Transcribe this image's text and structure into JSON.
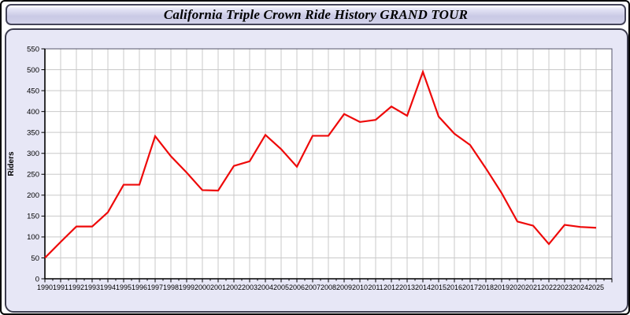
{
  "window": {
    "title": "California Triple Crown Ride History GRAND TOUR"
  },
  "chart_data": {
    "type": "line",
    "title": "California Triple Crown Ride History GRAND TOUR",
    "xlabel": "",
    "ylabel": "Riders",
    "ylim": [
      0,
      550
    ],
    "ytick_step": 50,
    "grid": true,
    "legend": "none",
    "x": [
      1990,
      1991,
      1992,
      1993,
      1994,
      1995,
      1996,
      1997,
      1998,
      1999,
      2000,
      2001,
      2002,
      2003,
      2004,
      2005,
      2006,
      2007,
      2008,
      2009,
      2010,
      2011,
      2012,
      2013,
      2014,
      2015,
      2016,
      2017,
      2018,
      2019,
      2020,
      2021,
      2022,
      2023,
      2024,
      2025
    ],
    "series": [
      {
        "name": "Riders",
        "color": "#ee0909",
        "values": [
          50,
          88,
          125,
          125,
          159,
          225,
          225,
          341,
          293,
          254,
          212,
          211,
          270,
          281,
          344,
          310,
          268,
          342,
          342,
          394,
          375,
          380,
          412,
          390,
          495,
          388,
          347,
          320,
          264,
          205,
          137,
          127,
          83,
          129,
          124,
          122
        ]
      }
    ]
  },
  "colors": {
    "panel_bg": "#e7e7f6",
    "plot_bg": "#ffffff",
    "gridline": "#c9c9c9",
    "frame": "#55556a",
    "axis": "#000000",
    "tick_label": "#000000",
    "line": "#ee0909"
  }
}
